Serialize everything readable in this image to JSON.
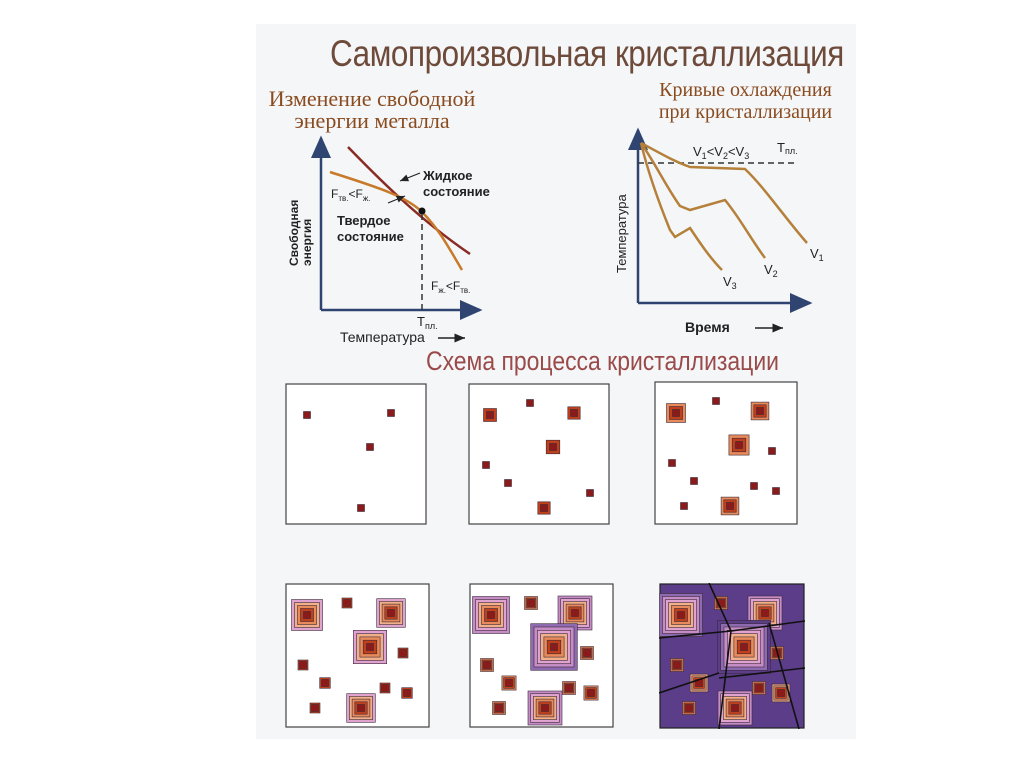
{
  "title": "Самопроизвольная кристаллизация",
  "free_energy": {
    "heading_line1": "Изменение свободной",
    "heading_line2": "энергии металла",
    "y_axis_line1": "Свободная",
    "y_axis_line2": "энергия",
    "x_axis": "Температура",
    "t_melt": "T",
    "t_melt_sub": "пл.",
    "liquid_line1": "Жидкое",
    "liquid_line2": "состояние",
    "solid_line1": "Твердое",
    "solid_line2": "состояние",
    "f_solid_lt_f_liquid": "F",
    "f_solid_lt_f_liquid_sub1": "тв.",
    "f_solid_lt_f_liquid_mid": "<F",
    "f_solid_lt_f_liquid_sub2": "ж.",
    "f_liquid_lt_f_solid": "F",
    "f_liquid_lt_f_solid_sub1": "ж.",
    "f_liquid_lt_f_solid_mid": "<F",
    "f_liquid_lt_f_solid_sub2": "тв.",
    "liquid_color": "#8a2b24",
    "solid_color": "#c77a2a"
  },
  "cooling": {
    "heading_line1": "Кривые охлаждения",
    "heading_line2": "при кристаллизации",
    "y_axis": "Температура",
    "x_axis": "Время",
    "relation_parts": [
      "V",
      "1",
      "<V",
      "2",
      "<V",
      "3"
    ],
    "t_melt": "T",
    "t_melt_sub": "пл.",
    "v1": "V",
    "v1_sub": "1",
    "v2": "V",
    "v2_sub": "2",
    "v3": "V",
    "v3_sub": "3",
    "curve_color": "#b5813a"
  },
  "scheme": {
    "title": "Схема процесса кристаллизации",
    "stages": 6,
    "nucleus_color": "#8b1a1a",
    "shell_colors": [
      "#c0401c",
      "#e88a5a",
      "#f1b089",
      "#e0a3cf",
      "#c58cc6",
      "#8e6ab0",
      "#5c3d8a"
    ]
  }
}
